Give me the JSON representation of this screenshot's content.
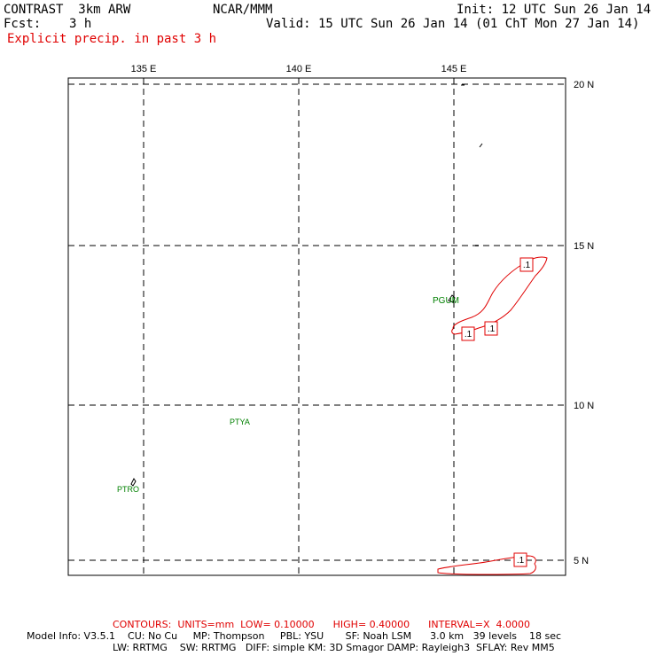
{
  "header": {
    "model": "CONTRAST  3km ARW",
    "center": "NCAR/MMM",
    "init": "Init: 12 UTC Sun 26 Jan 14",
    "fcst_label": "Fcst:",
    "fcst_value": "3 h",
    "valid": "Valid: 15 UTC Sun 26 Jan 14 (01 ChT Mon 27 Jan 14)",
    "field": "Explicit precip. in past 3 h"
  },
  "map": {
    "lon_labels": [
      "135 E",
      "140 E",
      "145 E"
    ],
    "lat_labels": [
      "20 N",
      "15 N",
      "10 N",
      "5 N"
    ],
    "stations": [
      "PGUM",
      "PTYA",
      "PTRO"
    ],
    "contour_labels": [
      ".1",
      ".1",
      ".1",
      ".1"
    ],
    "colors": {
      "contour": "#e00000",
      "station": "#008000",
      "grid": "#000000"
    }
  },
  "footer": {
    "contours": "CONTOURS:  UNITS=mm  LOW= 0.10000      HIGH= 0.40000      INTERVAL=X  4.0000",
    "model_info_1": "Model Info: V3.5.1    CU: No Cu     MP: Thompson     PBL: YSU       SF: Noah LSM      3.0 km   39 levels    18 sec",
    "model_info_2": "LW: RRTMG    SW: RRTMG   DIFF: simple KM: 3D Smagor DAMP: Rayleigh3  SFLAY: Rev MM5"
  }
}
